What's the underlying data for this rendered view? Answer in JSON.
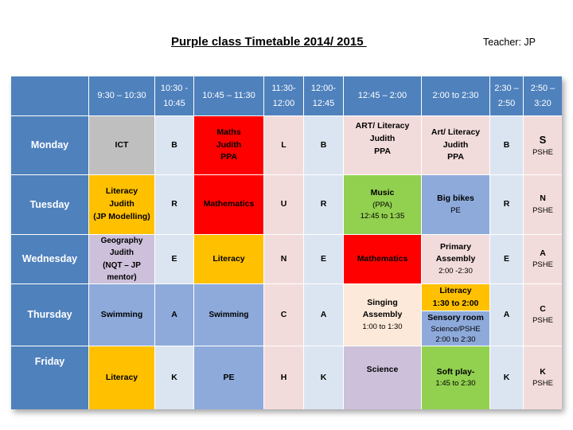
{
  "title": "Purple class Timetable 2014/ 2015 ",
  "teacher": "Teacher: JP",
  "colors": {
    "header_blue": "#4f81bd",
    "light_blue": "#dbe5f1",
    "light_pink": "#f2dcdb",
    "grey": "#bfbfbf",
    "red": "#ff0000",
    "orange": "#ffc000",
    "green": "#92d050",
    "periwinkle": "#8eaadb",
    "lavender": "#ccc0da",
    "peach": "#fde9d9"
  },
  "header": {
    "c1": "9:30 – 10:30",
    "c2a": "10:30 -",
    "c2b": "10:45",
    "c3": "10:45 – 11:30",
    "c4a": "11:30-",
    "c4b": "12:00",
    "c5a": "12:00-",
    "c5b": "12:45",
    "c6": "12:45 – 2:00",
    "c7": "2:00 to 2:30",
    "c8a": "2:30 –",
    "c8b": "2:50",
    "c9a": "2:50 –",
    "c9b": "3:20"
  },
  "days": {
    "mon": "Monday",
    "tue": "Tuesday",
    "wed": "Wednesday",
    "thu": "Thursday",
    "fri": "Friday"
  },
  "monday": {
    "p1": "ICT",
    "b1": "B",
    "p3a": "Maths",
    "p3b": "Judith",
    "p3c": "PPA",
    "l": "L",
    "b2": "B",
    "p6a": "ART/ Literacy",
    "p6b": "Judith",
    "p6c": "PPA",
    "p7a": "Art/ Literacy",
    "p7b": "Judith",
    "p7c": "PPA",
    "b3": "B",
    "p9a": "S",
    "p9b": "PSHE"
  },
  "tuesday": {
    "p1a": "Literacy",
    "p1b": "Judith",
    "p1c": "(JP Modelling)",
    "b1": "R",
    "p3": "Mathematics",
    "l": "U",
    "b2": "R",
    "p6a": "Music",
    "p6b": "(PPA)",
    "p6c": "12:45 to 1:35",
    "p7a": "Big bikes",
    "p7b": "PE",
    "b3": "R",
    "p9a": "N",
    "p9b": "PSHE"
  },
  "wednesday": {
    "p1a": "Geography",
    "p1b": "Judith",
    "p1c": "(NQT – JP",
    "p1d": "mentor)",
    "b1": "E",
    "p3": "Literacy",
    "l": "N",
    "b2": "E",
    "p6": "Mathematics",
    "p7a": "Primary",
    "p7b": "Assembly",
    "p7c": "2:00 -2:30",
    "b3": "E",
    "p9a": "A",
    "p9b": "PSHE"
  },
  "thursday": {
    "p1": "Swimming",
    "b1": "A",
    "p3": "Swimming",
    "l": "C",
    "b2": "A",
    "p6a": "Singing",
    "p6b": "Assembly",
    "p6c": "1:00 to 1:30",
    "p7a": "Literacy",
    "p7b": "1:30 to 2:00",
    "p7c": "Sensory room",
    "p7d": "Science/PSHE",
    "p7e": "2:00 to 2:30",
    "b3": "A",
    "p9a": "C",
    "p9b": "PSHE"
  },
  "friday": {
    "p1": "Literacy",
    "b1": "K",
    "p3": "PE",
    "l": "H",
    "b2": "K",
    "p6": "Science",
    "p7a": "Soft play-",
    "p7b": "1:45 to 2:30",
    "b3": "K",
    "p9a": "K",
    "p9b": "PSHE"
  }
}
